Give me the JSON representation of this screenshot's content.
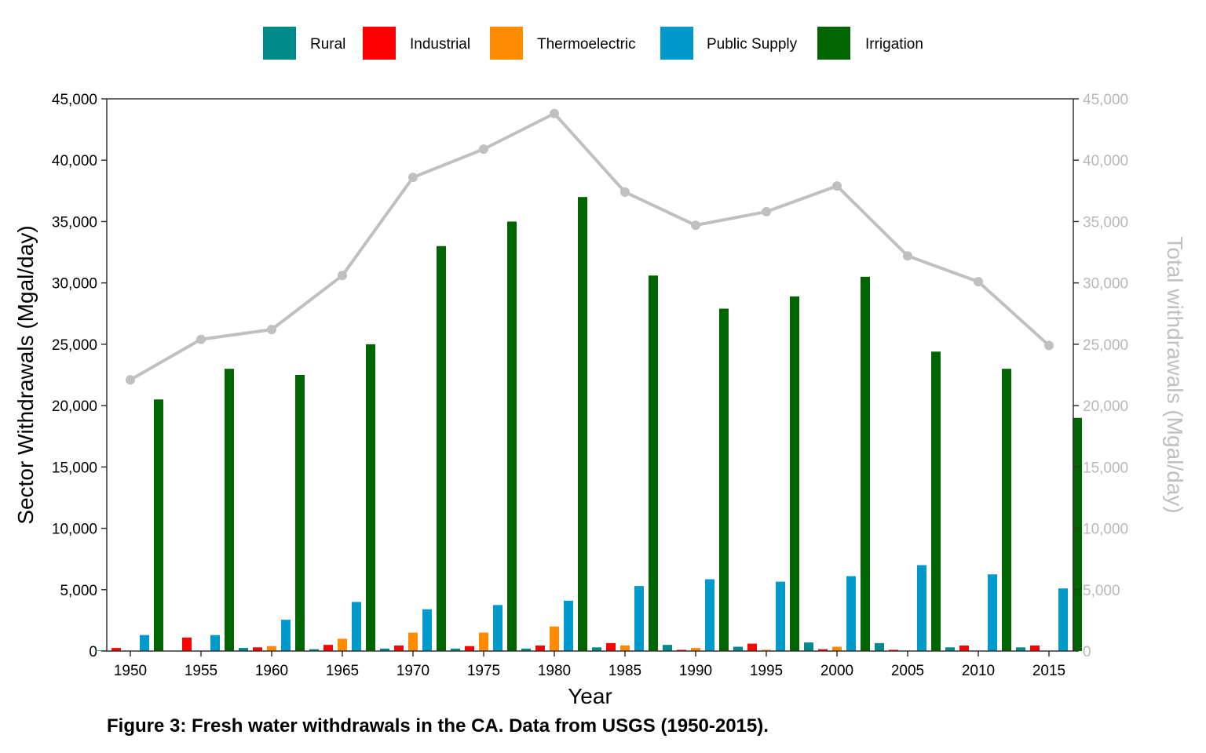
{
  "caption": "Figure 3: Fresh water withdrawals in the CA. Data from USGS (1950-2015).",
  "chart_data": {
    "type": "bar",
    "categories": [
      "1950",
      "1955",
      "1960",
      "1965",
      "1970",
      "1975",
      "1980",
      "1985",
      "1990",
      "1995",
      "2000",
      "2005",
      "2010",
      "2015"
    ],
    "xlabel": "Year",
    "ylabel": "Sector Withdrawals (Mgal/day)",
    "y2label": "Total withdrawals (Mgal/day)",
    "ylim": [
      0,
      45000
    ],
    "y2lim": [
      0,
      45000
    ],
    "yticks": [
      0,
      5000,
      10000,
      15000,
      20000,
      25000,
      30000,
      35000,
      40000,
      45000
    ],
    "ytick_labels": [
      "0",
      "5,000",
      "10,000",
      "15,000",
      "20,000",
      "25,000",
      "30,000",
      "35,000",
      "40,000",
      "45,000"
    ],
    "legend_position": "top",
    "grid": false,
    "series": [
      {
        "name": "Rural",
        "color": "#008b8b",
        "values": [
          50,
          0,
          250,
          150,
          200,
          200,
          200,
          300,
          500,
          350,
          700,
          650,
          300,
          300
        ]
      },
      {
        "name": "Industrial",
        "color": "#ff0000",
        "values": [
          250,
          1100,
          300,
          500,
          450,
          400,
          450,
          650,
          100,
          600,
          150,
          100,
          450,
          450
        ]
      },
      {
        "name": "Thermoelectric",
        "color": "#ff8c00",
        "values": [
          0,
          0,
          400,
          1000,
          1500,
          1500,
          2000,
          450,
          250,
          100,
          350,
          0,
          0,
          0
        ]
      },
      {
        "name": "Public Supply",
        "color": "#0099cc",
        "values": [
          1300,
          1300,
          2550,
          4000,
          3400,
          3750,
          4100,
          5300,
          5850,
          5650,
          6100,
          7000,
          6250,
          5100
        ]
      },
      {
        "name": "Irrigation",
        "color": "#006400",
        "values": [
          20500,
          23000,
          22500,
          25000,
          33000,
          35000,
          37000,
          30600,
          27900,
          28900,
          30500,
          24400,
          23000,
          19000
        ]
      }
    ],
    "total_line": {
      "name": "Total",
      "color": "#c0c0c0",
      "axis": "right",
      "values": [
        22100,
        25400,
        26200,
        30600,
        38600,
        40900,
        43800,
        37400,
        34700,
        35800,
        37900,
        32200,
        30100,
        24900
      ]
    }
  }
}
